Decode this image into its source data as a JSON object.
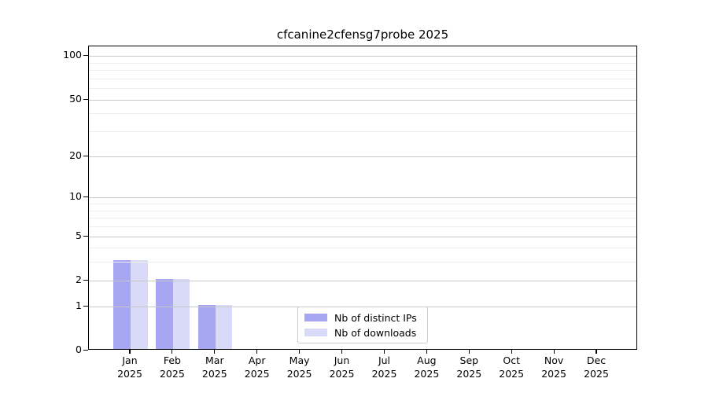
{
  "figure": {
    "background_color": "#ffffff",
    "text_color": "#000000"
  },
  "chart_data": {
    "type": "bar",
    "title": "cfcanine2cfensg7probe 2025",
    "x_axis": {
      "months": [
        "Jan",
        "Feb",
        "Mar",
        "Apr",
        "May",
        "Jun",
        "Jul",
        "Aug",
        "Sep",
        "Oct",
        "Nov",
        "Dec"
      ],
      "year": "2025"
    },
    "y_axis": {
      "scale": "log1p",
      "ticks": [
        0,
        1,
        2,
        5,
        10,
        20,
        50,
        100
      ],
      "minor_ticks": [
        3,
        4,
        6,
        7,
        8,
        9,
        30,
        40,
        60,
        70,
        80,
        90
      ],
      "range": [
        0,
        116
      ]
    },
    "series": [
      {
        "name": "Nb of distinct IPs",
        "color": "#a6a6f2",
        "values": [
          3,
          2,
          1,
          0,
          0,
          0,
          0,
          0,
          0,
          0,
          0,
          0
        ]
      },
      {
        "name": "Nb of downloads",
        "color": "#d9d9f8",
        "values": [
          3,
          2,
          1,
          0,
          0,
          0,
          0,
          0,
          0,
          0,
          0,
          0
        ]
      }
    ],
    "grid": {
      "enabled": true,
      "major_color": "#c8c8c8",
      "minor_color": "#ededed",
      "drawn_above_bars": true
    },
    "legend": {
      "position": "bottom-center"
    }
  }
}
